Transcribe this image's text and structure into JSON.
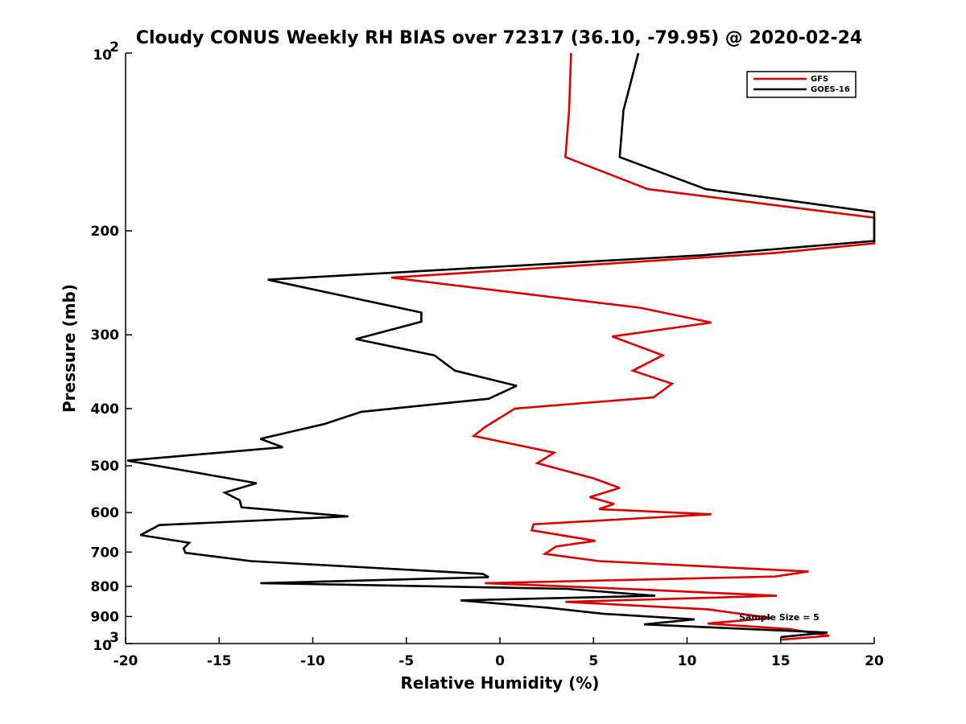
{
  "chart_data": {
    "type": "line",
    "title": "Cloudy CONUS Weekly RH BIAS over 72317 (36.10, -79.95) @ 2020-02-24",
    "xlabel": "Relative Humidity (%)",
    "ylabel": "Pressure (mb)",
    "xlim": [
      -20,
      20
    ],
    "ylim": [
      100,
      1000
    ],
    "yscale": "log",
    "y_reversed": true,
    "xticks": [
      -20,
      -15,
      -10,
      -5,
      0,
      5,
      10,
      15,
      20
    ],
    "xtick_labels": [
      "-20",
      "-15",
      "-10",
      "-5",
      "0",
      "5",
      "10",
      "15",
      "20"
    ],
    "yticks": [
      100,
      200,
      300,
      400,
      500,
      600,
      700,
      800,
      900,
      1000
    ],
    "ytick_labels": [
      {
        "base": "10",
        "exp": "2"
      },
      {
        "base": "200",
        "exp": ""
      },
      {
        "base": "300",
        "exp": ""
      },
      {
        "base": "400",
        "exp": ""
      },
      {
        "base": "500",
        "exp": ""
      },
      {
        "base": "600",
        "exp": ""
      },
      {
        "base": "700",
        "exp": ""
      },
      {
        "base": "800",
        "exp": ""
      },
      {
        "base": "900",
        "exp": ""
      },
      {
        "base": "10",
        "exp": "3"
      }
    ],
    "grid": false,
    "legend_position": "top-right",
    "annotation": "Sample Size = 5",
    "series": [
      {
        "name": "GFS",
        "color": "#e00000",
        "points": [
          [
            3.8,
            100
          ],
          [
            3.7,
            125
          ],
          [
            3.5,
            150
          ],
          [
            7.9,
            170
          ],
          [
            20,
            190
          ],
          [
            20,
            210
          ],
          [
            14.7,
            218
          ],
          [
            -5.8,
            240
          ],
          [
            7.5,
            270
          ],
          [
            11.3,
            286
          ],
          [
            6.0,
            302
          ],
          [
            8.7,
            325
          ],
          [
            7.1,
            345
          ],
          [
            9.2,
            363
          ],
          [
            8.2,
            383
          ],
          [
            0.8,
            400
          ],
          [
            -0.8,
            430
          ],
          [
            -1.4,
            445
          ],
          [
            2.9,
            475
          ],
          [
            2.0,
            495
          ],
          [
            5.0,
            525
          ],
          [
            6.4,
            545
          ],
          [
            4.8,
            565
          ],
          [
            6.1,
            580
          ],
          [
            5.3,
            592
          ],
          [
            11.3,
            604
          ],
          [
            1.8,
            628
          ],
          [
            1.7,
            643
          ],
          [
            5.1,
            670
          ],
          [
            3.0,
            685
          ],
          [
            2.4,
            705
          ],
          [
            5.3,
            725
          ],
          [
            16.5,
            755
          ],
          [
            14.7,
            770
          ],
          [
            -0.8,
            790
          ],
          [
            7.5,
            810
          ],
          [
            14.8,
            830
          ],
          [
            3.5,
            850
          ],
          [
            11.1,
            875
          ],
          [
            14.5,
            905
          ],
          [
            11.1,
            925
          ],
          [
            15.5,
            945
          ],
          [
            17.6,
            970
          ],
          [
            15.0,
            985
          ]
        ]
      },
      {
        "name": "GOES-16",
        "color": "#000000",
        "points": [
          [
            7.4,
            100
          ],
          [
            6.6,
            125
          ],
          [
            6.4,
            150
          ],
          [
            11.0,
            170
          ],
          [
            20,
            186
          ],
          [
            20,
            208
          ],
          [
            10.8,
            220
          ],
          [
            -12.4,
            242
          ],
          [
            -4.2,
            275
          ],
          [
            -4.2,
            285
          ],
          [
            -7.7,
            305
          ],
          [
            -3.5,
            325
          ],
          [
            -2.4,
            345
          ],
          [
            0.9,
            366
          ],
          [
            -0.6,
            385
          ],
          [
            -7.4,
            405
          ],
          [
            -9.4,
            425
          ],
          [
            -12.8,
            450
          ],
          [
            -11.6,
            465
          ],
          [
            -19.9,
            490
          ],
          [
            -13.0,
            535
          ],
          [
            -14.7,
            555
          ],
          [
            -13.9,
            572
          ],
          [
            -13.8,
            588
          ],
          [
            -8.1,
            609
          ],
          [
            -18.2,
            630
          ],
          [
            -19.2,
            655
          ],
          [
            -16.6,
            675
          ],
          [
            -16.9,
            690
          ],
          [
            -16.8,
            702
          ],
          [
            -13.3,
            725
          ],
          [
            -0.9,
            762
          ],
          [
            -0.6,
            772
          ],
          [
            -12.8,
            790
          ],
          [
            3.6,
            808
          ],
          [
            8.3,
            830
          ],
          [
            -2.1,
            845
          ],
          [
            2.6,
            870
          ],
          [
            5.5,
            890
          ],
          [
            10.4,
            910
          ],
          [
            7.7,
            928
          ],
          [
            17.5,
            958
          ],
          [
            15.0,
            975
          ]
        ]
      }
    ]
  }
}
